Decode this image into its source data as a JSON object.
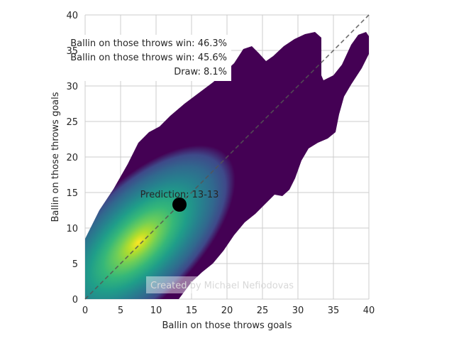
{
  "chart_data": {
    "type": "heatmap",
    "subtype": "2d-kde",
    "colormap": "viridis",
    "xlabel": "Ballin on those throws goals",
    "ylabel": "Ballin on those throws goals",
    "xlim": [
      0,
      40
    ],
    "ylim": [
      0,
      40
    ],
    "xticks": [
      "0",
      "5",
      "10",
      "15",
      "20",
      "25",
      "30",
      "35",
      "40"
    ],
    "yticks": [
      "0",
      "5",
      "10",
      "15",
      "20",
      "25",
      "30",
      "35",
      "40"
    ],
    "grid": true,
    "density_peak": {
      "x": 7.5,
      "y": 8
    },
    "diagonal_line": {
      "from": [
        0,
        0
      ],
      "to": [
        40,
        40
      ],
      "style": "dashed"
    },
    "prediction_point": {
      "x": 13.3,
      "y": 13.3,
      "label": "Prediction: 13-13"
    },
    "probabilities": [
      "Ballin on those throws win: 46.3%",
      "Ballin on those throws win: 45.6%",
      "Draw: 8.1%"
    ],
    "credit": "Created by Michael Nefiodovas"
  }
}
